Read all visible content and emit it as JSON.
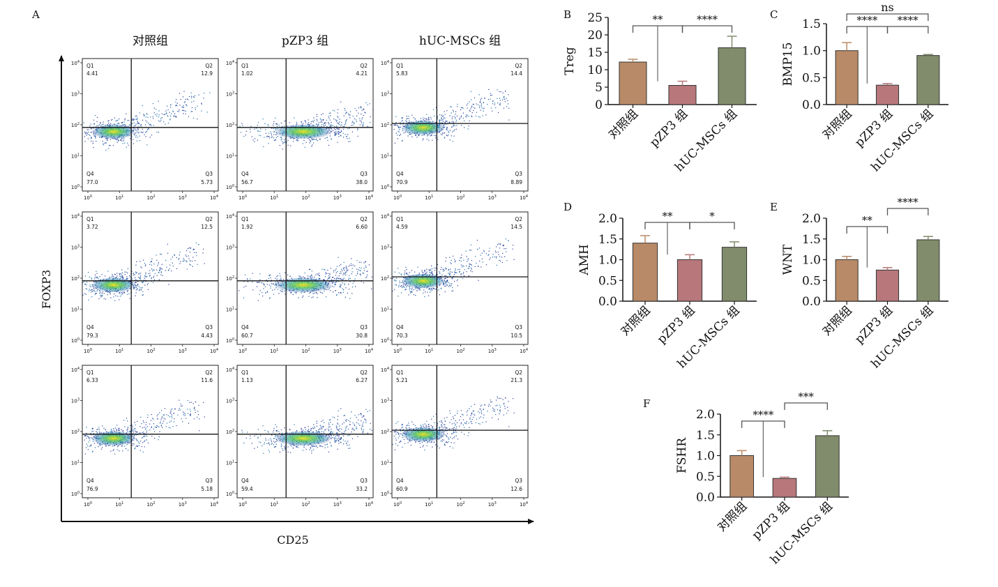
{
  "chart_data": [
    {
      "panel": "A",
      "type": "scatter",
      "xlabel": "CD25",
      "ylabel": "FOXP3",
      "axis_scale": "log",
      "tick_labels": [
        "10^0",
        "10^1",
        "10^2",
        "10^3",
        "10^4"
      ],
      "columns": [
        "对照组",
        "pZP3 组",
        "hUC-MSCs 组"
      ],
      "quadrant_labels": [
        "Q1",
        "Q2",
        "Q3",
        "Q4"
      ],
      "plots": [
        [
          {
            "Q1": "4.41",
            "Q2": "12.9",
            "Q3": "5.73",
            "Q4": "77.0"
          },
          {
            "Q1": "1.02",
            "Q2": "4.21",
            "Q3": "38.0",
            "Q4": "56.7"
          },
          {
            "Q1": "5.83",
            "Q2": "14.4",
            "Q3": "8.89",
            "Q4": "70.9"
          }
        ],
        [
          {
            "Q1": "3.72",
            "Q2": "12.5",
            "Q3": "4.43",
            "Q4": "79.3"
          },
          {
            "Q1": "1.92",
            "Q2": "6.60",
            "Q3": "30.8",
            "Q4": "60.7"
          },
          {
            "Q1": "4.59",
            "Q2": "14.5",
            "Q3": "10.5",
            "Q4": "70.3"
          }
        ],
        [
          {
            "Q1": "6.33",
            "Q2": "11.6",
            "Q3": "5.18",
            "Q4": "76.9"
          },
          {
            "Q1": "1.13",
            "Q2": "6.27",
            "Q3": "33.2",
            "Q4": "59.4"
          },
          {
            "Q1": "5.21",
            "Q2": "21.3",
            "Q3": "12.6",
            "Q4": "60.9"
          }
        ]
      ]
    },
    {
      "panel": "B",
      "type": "bar",
      "ylabel": "Treg",
      "categories": [
        "对照组",
        "pZP3 组",
        "hUC-MSCs 组"
      ],
      "values": [
        12.2,
        5.5,
        16.3
      ],
      "errors": [
        0.8,
        1.2,
        3.3
      ],
      "ylim": [
        0,
        25
      ],
      "yticks": [
        "0",
        "5",
        "10",
        "15",
        "20",
        "25"
      ],
      "colors": [
        "#b98a67",
        "#b7777b",
        "#808c6b"
      ],
      "comparisons": [
        {
          "from": 0,
          "to": 1,
          "label": "**"
        },
        {
          "from": 1,
          "to": 2,
          "label": "****"
        }
      ]
    },
    {
      "panel": "C",
      "type": "bar",
      "ylabel": "BMP15",
      "categories": [
        "对照组",
        "pZP3 组",
        "hUC-MSCs 组"
      ],
      "values": [
        1.0,
        0.36,
        0.91
      ],
      "errors": [
        0.15,
        0.03,
        0.02
      ],
      "ylim": [
        0,
        1.5
      ],
      "yticks": [
        "0.0",
        "0.5",
        "1.0",
        "1.5"
      ],
      "colors": [
        "#b98a67",
        "#b7777b",
        "#808c6b"
      ],
      "comparisons": [
        {
          "from": 0,
          "to": 1,
          "label": "****"
        },
        {
          "from": 1,
          "to": 2,
          "label": "****"
        },
        {
          "from": 0,
          "to": 2,
          "label": "ns"
        }
      ]
    },
    {
      "panel": "D",
      "type": "bar",
      "ylabel": "AMH",
      "categories": [
        "对照组",
        "pZP3 组",
        "hUC-MSCs 组"
      ],
      "values": [
        1.4,
        1.0,
        1.3
      ],
      "errors": [
        0.18,
        0.12,
        0.13
      ],
      "ylim": [
        0,
        2.0
      ],
      "yticks": [
        "0.0",
        "0.5",
        "1.0",
        "1.5",
        "2.0"
      ],
      "colors": [
        "#b98a67",
        "#b7777b",
        "#808c6b"
      ],
      "comparisons": [
        {
          "from": 0,
          "to": 1,
          "label": "**"
        },
        {
          "from": 1,
          "to": 2,
          "label": "*"
        }
      ]
    },
    {
      "panel": "E",
      "type": "bar",
      "ylabel": "WNT",
      "categories": [
        "对照组",
        "pZP3 组",
        "hUC-MSCs 组"
      ],
      "values": [
        1.0,
        0.75,
        1.48
      ],
      "errors": [
        0.08,
        0.06,
        0.08
      ],
      "ylim": [
        0,
        2.0
      ],
      "yticks": [
        "0.0",
        "0.5",
        "1.0",
        "1.5",
        "2.0"
      ],
      "colors": [
        "#b98a67",
        "#b7777b",
        "#808c6b"
      ],
      "comparisons": [
        {
          "from": 0,
          "to": 1,
          "label": "**"
        },
        {
          "from": 1,
          "to": 2,
          "label": "****"
        }
      ]
    },
    {
      "panel": "F",
      "type": "bar",
      "ylabel": "FSHR",
      "categories": [
        "对照组",
        "pZP3 组",
        "hUC-MSCs 组"
      ],
      "values": [
        1.0,
        0.45,
        1.48
      ],
      "errors": [
        0.12,
        0.03,
        0.12
      ],
      "ylim": [
        0,
        2.0
      ],
      "yticks": [
        "0.0",
        "0.5",
        "1.0",
        "1.5",
        "2.0"
      ],
      "colors": [
        "#b98a67",
        "#b7777b",
        "#808c6b"
      ],
      "comparisons": [
        {
          "from": 0,
          "to": 1,
          "label": "****"
        },
        {
          "from": 1,
          "to": 2,
          "label": "***"
        }
      ]
    }
  ]
}
